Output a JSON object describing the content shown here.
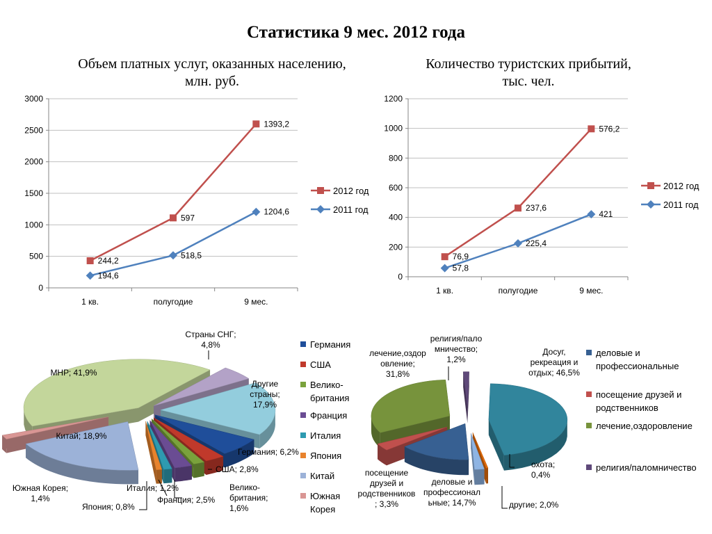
{
  "title": "Статистика 9 мес. 2012 года",
  "chart_data": [
    {
      "type": "line",
      "title_lines": [
        "Объем платных услуг, оказанных населению,",
        "млн. руб."
      ],
      "categories": [
        "1 кв.",
        "полугодие",
        "9 мес."
      ],
      "ylim": [
        0,
        3000
      ],
      "yticks": [
        0,
        500,
        1000,
        1500,
        2000,
        2500,
        3000
      ],
      "grid": true,
      "legend_position": "right",
      "series": [
        {
          "name": "2012 год",
          "values": [
            430,
            1110,
            2600
          ],
          "labels": [
            "244,2",
            "597",
            "1393,2"
          ],
          "color": "#c0504d",
          "marker": "square"
        },
        {
          "name": "2011 год",
          "values": [
            195,
            515,
            1205
          ],
          "labels": [
            "194,6",
            "518,5",
            "1204,6"
          ],
          "color": "#4f81bd",
          "marker": "diamond"
        }
      ]
    },
    {
      "type": "line",
      "title_lines": [
        "Количество туристских прибытий,",
        "тыс. чел."
      ],
      "categories": [
        "1 кв.",
        "полугодие",
        "9 мес."
      ],
      "ylim": [
        0,
        1200
      ],
      "yticks": [
        0,
        200,
        400,
        600,
        800,
        1000,
        1200
      ],
      "grid": true,
      "legend_position": "right",
      "series": [
        {
          "name": "2012 год",
          "values": [
            135,
            463,
            997
          ],
          "labels": [
            "76,9",
            "237,6",
            "576,2"
          ],
          "color": "#c0504d",
          "marker": "square"
        },
        {
          "name": "2011 год",
          "values": [
            58,
            225,
            421
          ],
          "labels": [
            "57,8",
            "225,4",
            "421"
          ],
          "color": "#4f81bd",
          "marker": "diamond"
        }
      ]
    },
    {
      "type": "pie",
      "legend_position": "right",
      "slices": [
        {
          "name": "Германия",
          "value": 6.2,
          "label": [
            "Германия; 6,2%"
          ],
          "color": "#1f4e9a"
        },
        {
          "name": "США",
          "value": 2.8,
          "label": [
            "США; 2,8%"
          ],
          "color": "#c0392b"
        },
        {
          "name": "Велико-британия",
          "legend": [
            "Велико-",
            "британия"
          ],
          "value": 1.6,
          "label": [
            "Велико-",
            "британия;",
            "1,6%"
          ],
          "color": "#7aa23c"
        },
        {
          "name": "Франция",
          "value": 2.5,
          "label": [
            "Франция; 2,5%"
          ],
          "color": "#6a4c93"
        },
        {
          "name": "Италия",
          "value": 1.2,
          "label": [
            "Италия; 1,2%"
          ],
          "color": "#2e9ab0"
        },
        {
          "name": "Япония",
          "value": 0.8,
          "label": [
            "Япония; 0,8%"
          ],
          "color": "#e8832d"
        },
        {
          "name": "Китай",
          "value": 18.9,
          "label": [
            "Китай; 18,9%"
          ],
          "color": "#9cb2d8"
        },
        {
          "name": "Южная Корея",
          "legend": [
            "Южная",
            "Корея"
          ],
          "value": 1.4,
          "label": [
            "Южная Корея;",
            "1,4%"
          ],
          "color": "#d99694"
        },
        {
          "name": "МНР",
          "value": 41.9,
          "label": [
            "МНР; 41,9%"
          ],
          "color": "#c3d69b"
        },
        {
          "name": "Страны СНГ",
          "value": 4.8,
          "label": [
            "Страны СНГ;",
            "4,8%"
          ],
          "color": "#b3a2c7"
        },
        {
          "name": "Другие страны",
          "value": 17.9,
          "label": [
            "Другие",
            "страны;",
            "17,9%"
          ],
          "color": "#93cddd"
        }
      ]
    },
    {
      "type": "pie",
      "legend_position": "right",
      "slices": [
        {
          "name": "Досуг, рекреация и отдых",
          "value": 46.5,
          "label": [
            "Досуг,",
            "рекреация и",
            "отдых; 46,5%"
          ],
          "color": "#31859c"
        },
        {
          "name": "охота",
          "value": 0.4,
          "label": [
            "охота;",
            "0,4%"
          ],
          "color": "#e46c0a"
        },
        {
          "name": "другие",
          "value": 2.0,
          "label": [
            "другие; 2,0%"
          ],
          "color": "#8eb4e3"
        },
        {
          "name": "деловые и профессиональные",
          "legend": [
            "деловые и",
            "профессиональные"
          ],
          "value": 14.7,
          "label": [
            "деловые и",
            "профессионал",
            "ьные; 14,7%"
          ],
          "color": "#376092"
        },
        {
          "name": "посещение друзей и родственников",
          "legend": [
            "посещение друзей и",
            "родственников"
          ],
          "value": 3.3,
          "label": [
            "посещение",
            "друзей и",
            "родственников",
            "; 3,3%"
          ],
          "color": "#c0504d"
        },
        {
          "name": "лечение,оздоровление",
          "legend": [
            "лечение,оздоровление"
          ],
          "value": 31.8,
          "label": [
            "лечение,оздор",
            "овление;",
            "31,8%"
          ],
          "color": "#77933c"
        },
        {
          "name": "религия/паломничество",
          "legend": [
            "религия/паломничество"
          ],
          "value": 1.2,
          "label": [
            "религия/пало",
            "мничество;",
            "1,2%"
          ],
          "color": "#5f497a"
        }
      ],
      "legend_items": [
        3,
        4,
        5,
        6
      ]
    }
  ]
}
